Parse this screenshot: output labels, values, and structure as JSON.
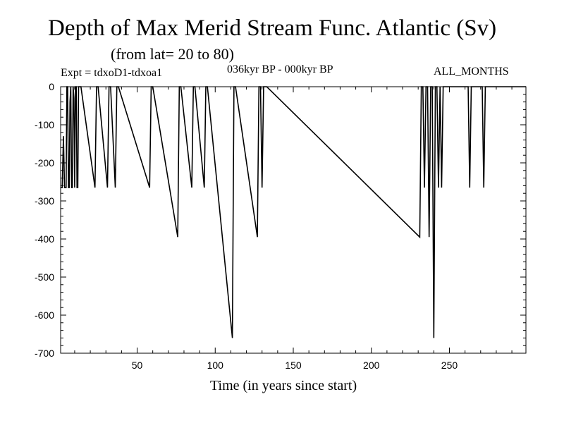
{
  "header": {
    "title": "Depth of Max Merid Stream Func. Atlantic (Sv)",
    "subtitle": "(from lat= 20 to 80)",
    "experiment": "Expt = tdxoD1-tdxoa1",
    "period": "036kyr BP - 000kyr BP",
    "months": "ALL_MONTHS"
  },
  "chart_data": {
    "type": "line",
    "title": "Depth of Max Merid Stream Func. Atlantic (Sv)",
    "subtitle": "(from lat= 20 to 80)",
    "xlabel": "Time (in years since start)",
    "ylabel": "",
    "xlim": [
      1,
      299
    ],
    "ylim": [
      -700,
      0
    ],
    "x_ticks": [
      50,
      100,
      150,
      200,
      250
    ],
    "y_ticks": [
      0,
      -100,
      -200,
      -300,
      -400,
      -500,
      -600,
      -700
    ],
    "x_tick_labels": [
      "50",
      "100",
      "150",
      "200",
      "250"
    ],
    "y_tick_labels": [
      "0",
      "-100",
      "-200",
      "-300",
      "-400",
      "-500",
      "-600",
      "-700"
    ],
    "grid": false,
    "series": [
      {
        "color": "#000000",
        "x": [
          1,
          2,
          2.8,
          3.5,
          4,
          4.5,
          5,
          5.5,
          6,
          6.5,
          7,
          7.5,
          8,
          8.5,
          9,
          9.5,
          10,
          10.5,
          11,
          11.5,
          12,
          12.5,
          13,
          14,
          23,
          24,
          25,
          31,
          32,
          33,
          36,
          37,
          38,
          58,
          59,
          60,
          76,
          77,
          78,
          85,
          86,
          87,
          93,
          94,
          95,
          111,
          112,
          113,
          127,
          128,
          129,
          130,
          131,
          132,
          133,
          231,
          232,
          233,
          234,
          235,
          236,
          237,
          238,
          239,
          240,
          241,
          242,
          243,
          244,
          245,
          246,
          262,
          263,
          264,
          271,
          272,
          273,
          299
        ],
        "y": [
          -265,
          -265,
          -130,
          -265,
          -265,
          -265,
          0,
          0,
          -265,
          -265,
          -40,
          0,
          -265,
          -265,
          0,
          -30,
          -265,
          0,
          0,
          -265,
          -265,
          0,
          0,
          0,
          -265,
          0,
          0,
          -265,
          0,
          0,
          -265,
          0,
          0,
          -265,
          0,
          0,
          -395,
          0,
          0,
          -265,
          0,
          0,
          -265,
          0,
          0,
          -660,
          0,
          0,
          -395,
          0,
          0,
          -265,
          0,
          0,
          0,
          -395,
          0,
          0,
          -265,
          0,
          0,
          -395,
          0,
          0,
          -660,
          0,
          0,
          -265,
          0,
          -265,
          0,
          0,
          -265,
          0,
          0,
          -265,
          0,
          0
        ]
      }
    ]
  }
}
